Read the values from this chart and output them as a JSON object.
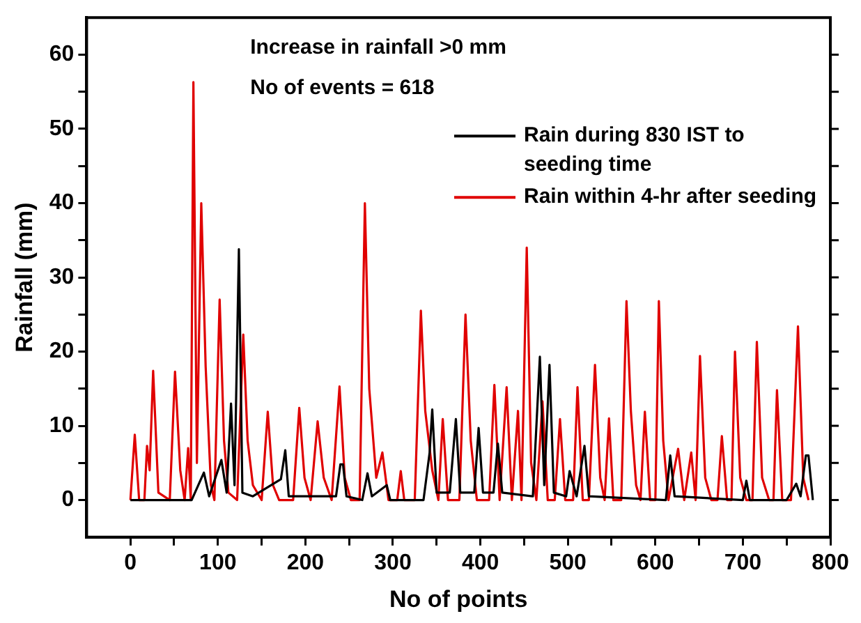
{
  "chart_data": {
    "type": "line",
    "xlabel": "No of points",
    "ylabel": "Rainfall (mm)",
    "annotations": [
      "Increase in rainfall >0 mm",
      "No of events = 618"
    ],
    "xlim": [
      -50,
      800
    ],
    "ylim": [
      -5,
      65
    ],
    "xticks": [
      0,
      {
        "value": 50,
        "label": null
      },
      100,
      {
        "value": 150,
        "label": null
      },
      200,
      {
        "value": 250,
        "label": null
      },
      300,
      {
        "value": 350,
        "label": null
      },
      400,
      {
        "value": 450,
        "label": null
      },
      500,
      {
        "value": 550,
        "label": null
      },
      600,
      {
        "value": 650,
        "label": null
      },
      700,
      {
        "value": 750,
        "label": null
      },
      800
    ],
    "yticks": [
      0,
      {
        "value": 5,
        "label": null
      },
      10,
      {
        "value": 15,
        "label": null
      },
      20,
      {
        "value": 25,
        "label": null
      },
      30,
      {
        "value": 35,
        "label": null
      },
      40,
      {
        "value": 45,
        "label": null
      },
      50,
      {
        "value": 55,
        "label": null
      },
      60
    ],
    "grid": false,
    "legend": "top right",
    "marker": "none",
    "line_style": "solid",
    "series": [
      {
        "name": "Rain during 830 IST to seeding time",
        "color": "#000000",
        "x": [
          0,
          70,
          84,
          90,
          104,
          110,
          115,
          119,
          124,
          128,
          140,
          172,
          177,
          181,
          235,
          240,
          243,
          247,
          265,
          271,
          276,
          293,
          297,
          335,
          342,
          345,
          350,
          365,
          372,
          377,
          393,
          398,
          403,
          415,
          420,
          425,
          460,
          468,
          473,
          479,
          484,
          498,
          502,
          510,
          519,
          524,
          612,
          617,
          622,
          700,
          704,
          708,
          750,
          761,
          766,
          772,
          775,
          780
        ],
        "values": [
          0,
          0,
          3.7,
          0.5,
          5.4,
          1,
          13,
          2,
          33.8,
          1,
          0.5,
          2.8,
          6.7,
          0.5,
          0.5,
          4.8,
          4.8,
          0.5,
          0,
          3.6,
          0.5,
          2,
          0,
          0,
          6.4,
          12.2,
          1,
          1,
          10.9,
          1,
          1,
          9.7,
          1,
          1,
          7.6,
          1,
          0.5,
          19.3,
          2,
          18.2,
          1,
          0.5,
          3.9,
          0.5,
          7.3,
          0.5,
          0,
          6,
          0.5,
          0,
          2.6,
          0,
          0,
          2.2,
          0.5,
          6,
          6,
          0
        ]
      },
      {
        "name": "Rain within 4-hr after seeding",
        "color": "#e00000",
        "x": [
          0,
          5,
          10,
          16,
          19,
          22,
          26,
          32,
          45,
          51,
          57,
          62,
          66,
          69,
          72,
          76,
          81,
          86,
          92,
          96,
          102,
          107,
          112,
          122,
          129,
          134,
          140,
          150,
          157,
          163,
          170,
          186,
          193,
          199,
          206,
          214,
          221,
          230,
          239,
          245,
          252,
          262,
          268,
          273,
          281,
          288,
          295,
          305,
          309,
          313,
          325,
          332,
          337,
          345,
          352,
          357,
          363,
          376,
          383,
          389,
          396,
          410,
          416,
          422,
          430,
          436,
          443,
          447,
          453,
          458,
          464,
          471,
          477,
          485,
          491,
          497,
          506,
          511,
          517,
          524,
          531,
          537,
          542,
          547,
          552,
          561,
          567,
          572,
          578,
          583,
          588,
          594,
          600,
          604,
          609,
          615,
          626,
          633,
          641,
          646,
          651,
          657,
          664,
          671,
          676,
          682,
          687,
          691,
          697,
          704,
          711,
          716,
          722,
          730,
          735,
          739,
          745,
          755,
          763,
          769,
          775
        ],
        "values": [
          0,
          8.8,
          0,
          0,
          7.3,
          4,
          17.4,
          1,
          0,
          17.3,
          4,
          0,
          7,
          0,
          56.3,
          5,
          40,
          18,
          2,
          0,
          27,
          8,
          1,
          0,
          22.3,
          8,
          2,
          0,
          11.9,
          2,
          0,
          0,
          12.4,
          3,
          0,
          10.6,
          3,
          0,
          15.3,
          3,
          0,
          0,
          40,
          15,
          3,
          6.4,
          0,
          0,
          3.9,
          0,
          0,
          25.5,
          12,
          4,
          0,
          10.9,
          0,
          0,
          25,
          8,
          0,
          0,
          15.5,
          0,
          15.2,
          0,
          12,
          0,
          34,
          5,
          0,
          13.3,
          0,
          0,
          10.9,
          0,
          0,
          15.2,
          0,
          0,
          18.2,
          3,
          0,
          11,
          0,
          0,
          26.8,
          12,
          2,
          0,
          11.9,
          0,
          0,
          26.8,
          8,
          0,
          6.9,
          0,
          6.4,
          0,
          19.4,
          3,
          0,
          0,
          8.6,
          0,
          0,
          20,
          3,
          0,
          0,
          21.3,
          3,
          0,
          0,
          14.8,
          0,
          0,
          23.4,
          3,
          0
        ]
      }
    ]
  }
}
